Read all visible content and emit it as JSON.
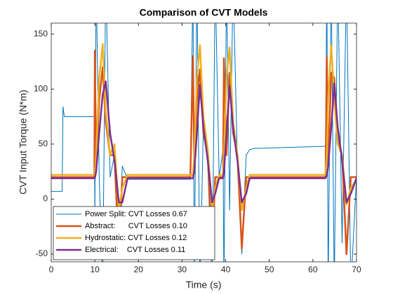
{
  "chart_data": {
    "type": "line",
    "title": "Comparison of CVT Models",
    "x_label": "Time (s)",
    "y_label": "CVT Input Torque (N*m)",
    "x": [
      0,
      2.5,
      2.7,
      3,
      3.5,
      9.9,
      10,
      10.3,
      11,
      11.8,
      12.5,
      13.5,
      14.5,
      15.5,
      16.3,
      17.5,
      31.9,
      32.5,
      32.8,
      33.4,
      34.1,
      34.9,
      35.9,
      36.9,
      37.6,
      38.5,
      39.4,
      39.6,
      40.2,
      40.9,
      41.7,
      42.7,
      43.7,
      44.7,
      45.5,
      46.5,
      62.9,
      63.2,
      63.5,
      64.2,
      64.9,
      65.7,
      66.7,
      67.7,
      68.7,
      70
    ],
    "series": [
      {
        "name": "Power Split: CVT Losses 0.67",
        "color": "#0072BD",
        "width": 1,
        "values": [
          7,
          7,
          84,
          75,
          75,
          75,
          -20,
          200,
          20,
          -80,
          200,
          20,
          40,
          -40,
          30,
          18,
          18,
          200,
          -80,
          200,
          -80,
          70,
          30,
          -80,
          200,
          20,
          44,
          -80,
          200,
          -10,
          200,
          30,
          -50,
          40,
          45,
          46,
          48,
          200,
          -80,
          200,
          -80,
          200,
          -40,
          200,
          -80,
          20
        ]
      },
      {
        "name": "Abstract:      CVT Losses 0.10",
        "color": "#D95319",
        "width": 2.5,
        "values": [
          20,
          20,
          20,
          20,
          20,
          20,
          135,
          30,
          90,
          120,
          70,
          40,
          40,
          -50,
          20,
          20,
          20,
          130,
          30,
          90,
          118,
          60,
          40,
          -50,
          20,
          20,
          20,
          128,
          40,
          115,
          60,
          40,
          -45,
          20,
          20,
          20,
          20,
          129,
          30,
          115,
          110,
          55,
          40,
          -50,
          20,
          20
        ]
      },
      {
        "name": "Hydrostatic: CVT Losses 0.12",
        "color": "#EDB120",
        "width": 2.5,
        "values": [
          22,
          22,
          22,
          22,
          22,
          22,
          22,
          40,
          110,
          141,
          80,
          40,
          50,
          -10,
          10,
          22,
          22,
          22,
          40,
          110,
          140,
          75,
          45,
          -10,
          10,
          22,
          22,
          40,
          110,
          138,
          70,
          40,
          -10,
          10,
          22,
          22,
          22,
          40,
          90,
          140,
          90,
          50,
          40,
          -5,
          10,
          18
        ]
      },
      {
        "name": "Electrical:    CVT Losses 0.11",
        "color": "#7E2F8E",
        "width": 2.5,
        "values": [
          19,
          19,
          19,
          19,
          19,
          19,
          19,
          25,
          60,
          95,
          107,
          60,
          35,
          -3,
          -3,
          19,
          19,
          19,
          25,
          60,
          104,
          65,
          35,
          -3,
          5,
          19,
          19,
          25,
          60,
          103,
          65,
          35,
          -3,
          5,
          19,
          19,
          19,
          22,
          30,
          65,
          105,
          65,
          35,
          -3,
          5,
          19
        ]
      }
    ],
    "xlim": [
      0,
      70
    ],
    "xticks": [
      0,
      10,
      20,
      30,
      40,
      50,
      60,
      70
    ],
    "ylim": [
      -57,
      160
    ],
    "yticks": [
      -50,
      0,
      50,
      100,
      150
    ],
    "grid": false,
    "legend_location": "southwest"
  }
}
